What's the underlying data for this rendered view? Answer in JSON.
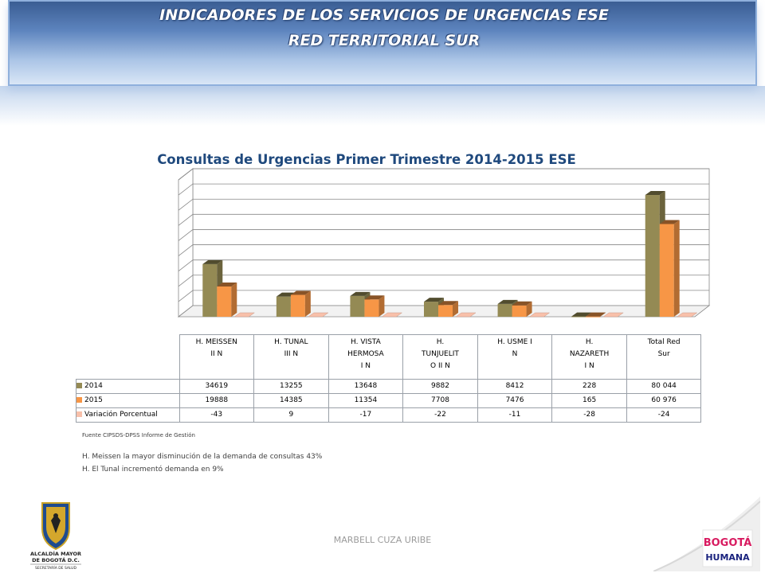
{
  "banner": {
    "title_line1": "INDICADORES DE LOS SERVICIOS DE URGENCIAS ESE",
    "title_line2": "RED TERRITORIAL SUR"
  },
  "chart_data": {
    "type": "bar",
    "title": "Consultas de Urgencias  Primer Trimestre 2014-2015 ESE",
    "categories": [
      [
        "H. MEISSEN",
        "II N"
      ],
      [
        "H. TUNAL",
        "III N"
      ],
      [
        "H. VISTA",
        "HERMOSA",
        "I N"
      ],
      [
        "H.",
        "TUNJUELIT",
        "O II N"
      ],
      [
        "H. USME I",
        "N"
      ],
      [
        "H.",
        "NAZARETH",
        "I N"
      ],
      [
        "Total Red",
        "Sur"
      ]
    ],
    "series": [
      {
        "name": "2014",
        "color": "#948a54",
        "values": [
          34619,
          13255,
          13648,
          9882,
          8412,
          228,
          80044
        ],
        "labels": [
          "34619",
          "13255",
          "13648",
          "9882",
          "8412",
          "228",
          "80 044"
        ]
      },
      {
        "name": "2015",
        "color": "#f79646",
        "values": [
          19888,
          14385,
          11354,
          7708,
          7476,
          165,
          60976
        ],
        "labels": [
          "19888",
          "14385",
          "11354",
          "7708",
          "7476",
          "165",
          "60 976"
        ]
      },
      {
        "name": "Variación Porcentual",
        "color": "#f8c0aa",
        "values": [
          -43,
          9,
          -17,
          -22,
          -11,
          -28,
          -24
        ],
        "labels": [
          "-43",
          "9",
          "-17",
          "-22",
          "-11",
          "-28",
          "-24"
        ]
      }
    ],
    "ylim": [
      0,
      90000
    ],
    "grid": true,
    "legend": "table-left"
  },
  "source": "Fuente CIPSDS-DPSS Informe de Gestión",
  "notes": [
    "H. Meissen  la mayor disminución de la demanda  de consultas 43%",
    "H. El Tunal incrementó demanda en 9%"
  ],
  "author": "MARBELL CUZA URIBE",
  "logos": {
    "left": [
      "ALCALDÍA MAYOR",
      "DE BOGOTÁ D.C.",
      "SECRETARÍA DE SALUD"
    ],
    "right": [
      "BOGOTÁ",
      "HUMANA"
    ]
  }
}
